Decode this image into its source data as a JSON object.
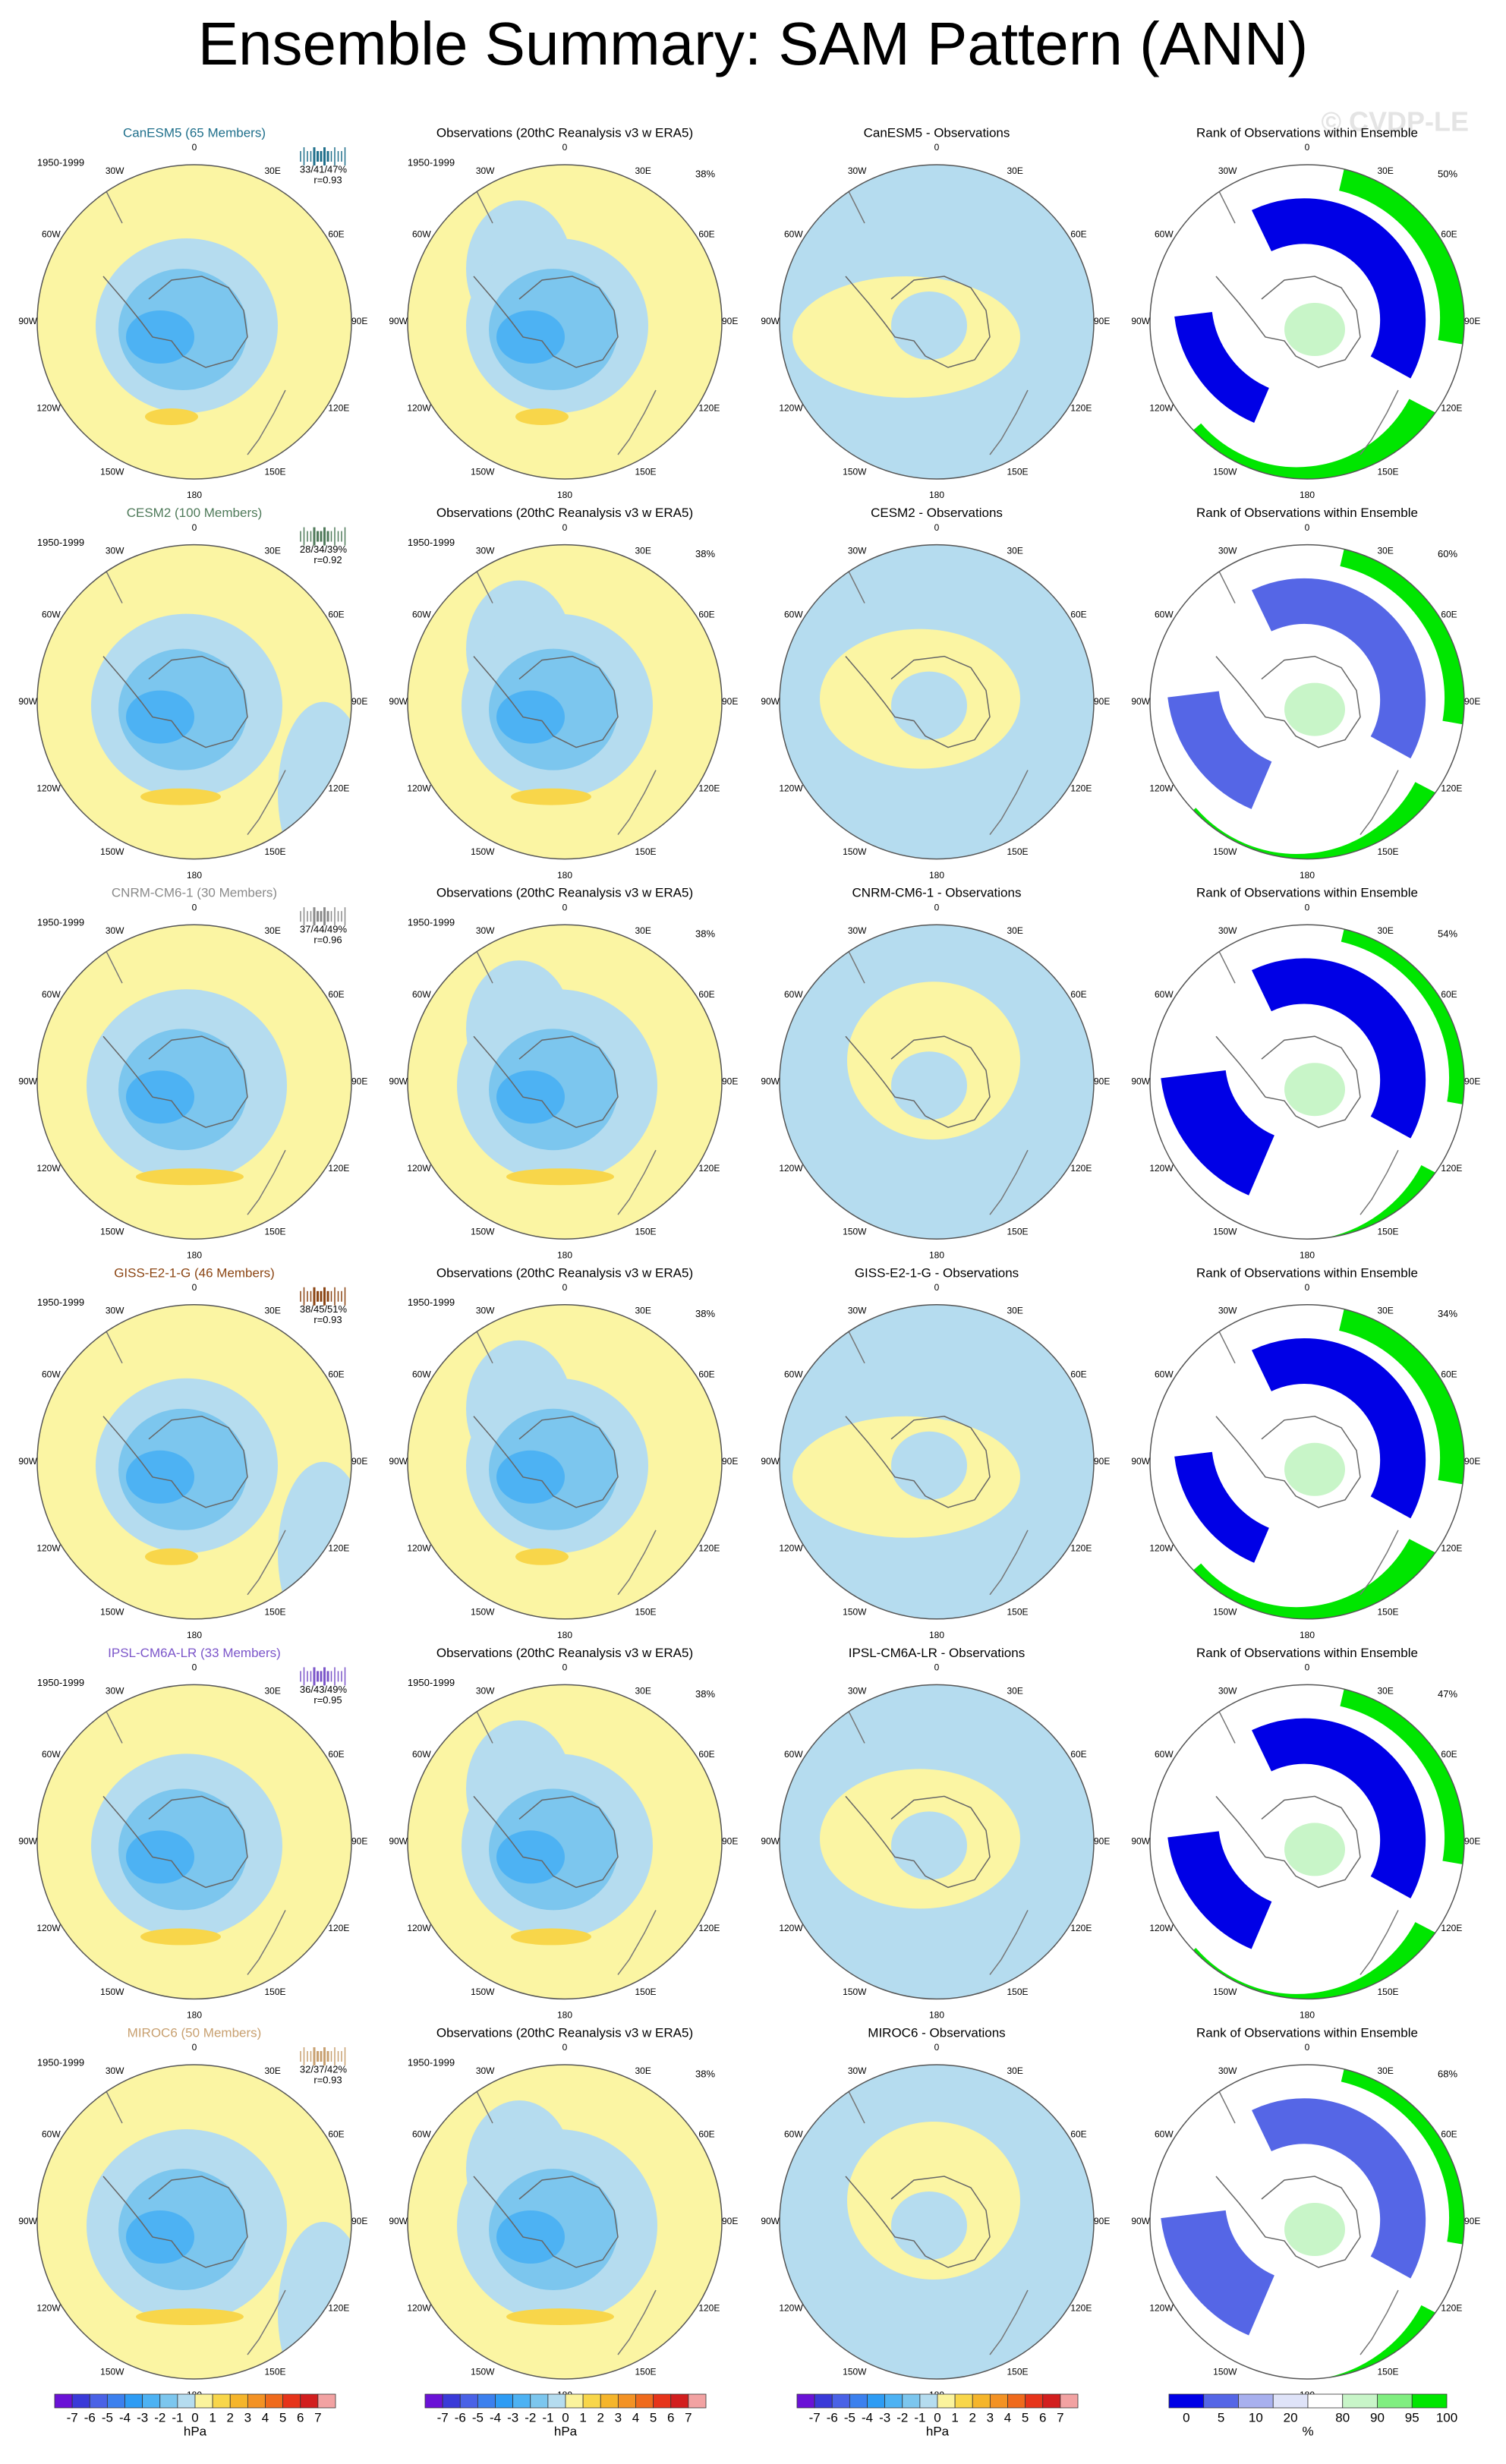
{
  "title": "Ensemble Summary: SAM Pattern (ANN)",
  "watermark": "© CVDP-LE",
  "lon_labels": [
    "0",
    "30E",
    "60E",
    "90E",
    "120E",
    "150E",
    "180",
    "150W",
    "120W",
    "90W",
    "60W",
    "30W"
  ],
  "rows": [
    {
      "model_title": "CanESM5 (65 Members)",
      "title_color": "#1f6f8b",
      "period": "1950-1999",
      "stats": "33/41/47%",
      "r": "r=0.93",
      "obs_title": "Observations (20thC Reanalysis v3 w ERA5)",
      "obs_period": "1950-1999",
      "obs_pct": "38%",
      "diff_title": "CanESM5 - Observations",
      "rank_title": "Rank of Observations within Ensemble",
      "rank_pct": "50%"
    },
    {
      "model_title": "CESM2 (100 Members)",
      "title_color": "#4f7a5a",
      "period": "1950-1999",
      "stats": "28/34/39%",
      "r": "r=0.92",
      "obs_title": "Observations (20thC Reanalysis v3 w ERA5)",
      "obs_period": "1950-1999",
      "obs_pct": "38%",
      "diff_title": "CESM2 - Observations",
      "rank_title": "Rank of Observations within Ensemble",
      "rank_pct": "60%"
    },
    {
      "model_title": "CNRM-CM6-1 (30 Members)",
      "title_color": "#8a8a8a",
      "period": "1950-1999",
      "stats": "37/44/49%",
      "r": "r=0.96",
      "obs_title": "Observations (20thC Reanalysis v3 w ERA5)",
      "obs_period": "1950-1999",
      "obs_pct": "38%",
      "diff_title": "CNRM-CM6-1 - Observations",
      "rank_title": "Rank of Observations within Ensemble",
      "rank_pct": "54%"
    },
    {
      "model_title": "GISS-E2-1-G (46 Members)",
      "title_color": "#8b4513",
      "period": "1950-1999",
      "stats": "38/45/51%",
      "r": "r=0.93",
      "obs_title": "Observations (20thC Reanalysis v3 w ERA5)",
      "obs_period": "1950-1999",
      "obs_pct": "38%",
      "diff_title": "GISS-E2-1-G - Observations",
      "rank_title": "Rank of Observations within Ensemble",
      "rank_pct": "34%"
    },
    {
      "model_title": "IPSL-CM6A-LR (33 Members)",
      "title_color": "#7b55c9",
      "period": "1950-1999",
      "stats": "36/43/49%",
      "r": "r=0.95",
      "obs_title": "Observations (20thC Reanalysis v3 w ERA5)",
      "obs_period": "1950-1999",
      "obs_pct": "38%",
      "diff_title": "IPSL-CM6A-LR - Observations",
      "rank_title": "Rank of Observations within Ensemble",
      "rank_pct": "47%"
    },
    {
      "model_title": "MIROC6 (50 Members)",
      "title_color": "#c8a070",
      "period": "1950-1999",
      "stats": "32/37/42%",
      "r": "r=0.93",
      "obs_title": "Observations (20thC Reanalysis v3 w ERA5)",
      "obs_period": "1950-1999",
      "obs_pct": "38%",
      "diff_title": "MIROC6 - Observations",
      "rank_title": "Rank of Observations within Ensemble",
      "rank_pct": "68%"
    }
  ],
  "colorbars": {
    "hpa_labels": [
      "-7",
      "-6",
      "-5",
      "-4",
      "-3",
      "-2",
      "-1",
      "0",
      "1",
      "2",
      "3",
      "4",
      "5",
      "6",
      "7"
    ],
    "hpa_unit": "hPa",
    "hpa_colors": [
      "#6a12d6",
      "#3a3ad8",
      "#4a62e6",
      "#3c80ee",
      "#2e9cf4",
      "#4db2f3",
      "#7cc6ee",
      "#b5dcef",
      "#fbf39c",
      "#f8d64a",
      "#f5b52b",
      "#f39224",
      "#ef6a1c",
      "#e6341a",
      "#d21e1e",
      "#f2a2a2"
    ],
    "pct_labels": [
      "0",
      "5",
      "10",
      "20",
      "80",
      "90",
      "95",
      "100"
    ],
    "pct_unit": "%",
    "pct_colors": [
      "#0000e6",
      "#5566e6",
      "#a8b0ee",
      "#dfe3f8",
      "#ffffff",
      "#c8f5c8",
      "#80ee80",
      "#00e600"
    ]
  }
}
